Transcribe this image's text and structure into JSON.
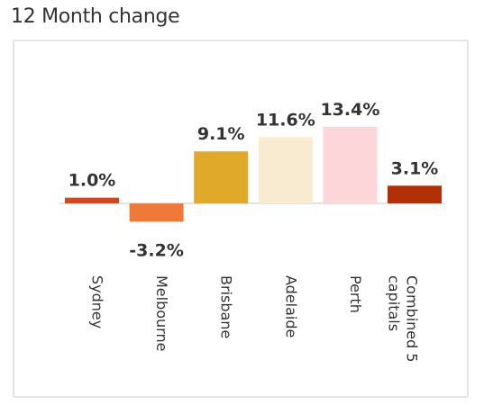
{
  "title": "12 Month change",
  "chart_data": {
    "type": "bar",
    "title": "12 Month change",
    "categories": [
      "Sydney",
      "Melbourne",
      "Brisbane",
      "Adelaide",
      "Perth",
      "Combined 5 capitals"
    ],
    "category_lines": [
      [
        "Sydney"
      ],
      [
        "Melbourne"
      ],
      [
        "Brisbane"
      ],
      [
        "Adelaide"
      ],
      [
        "Perth"
      ],
      [
        "Combined 5",
        "capitals"
      ]
    ],
    "values": [
      1.0,
      -3.2,
      9.1,
      11.6,
      13.4,
      3.1
    ],
    "data_labels": [
      "1.0%",
      "-3.2%",
      "9.1%",
      "11.6%",
      "13.4%",
      "3.1%"
    ],
    "colors": [
      "#d8441c",
      "#f0793a",
      "#e0a92a",
      "#f8ebcf",
      "#fdd6da",
      "#b23008"
    ],
    "xlabel": "",
    "ylabel": "",
    "grid": false,
    "legend": "none"
  }
}
